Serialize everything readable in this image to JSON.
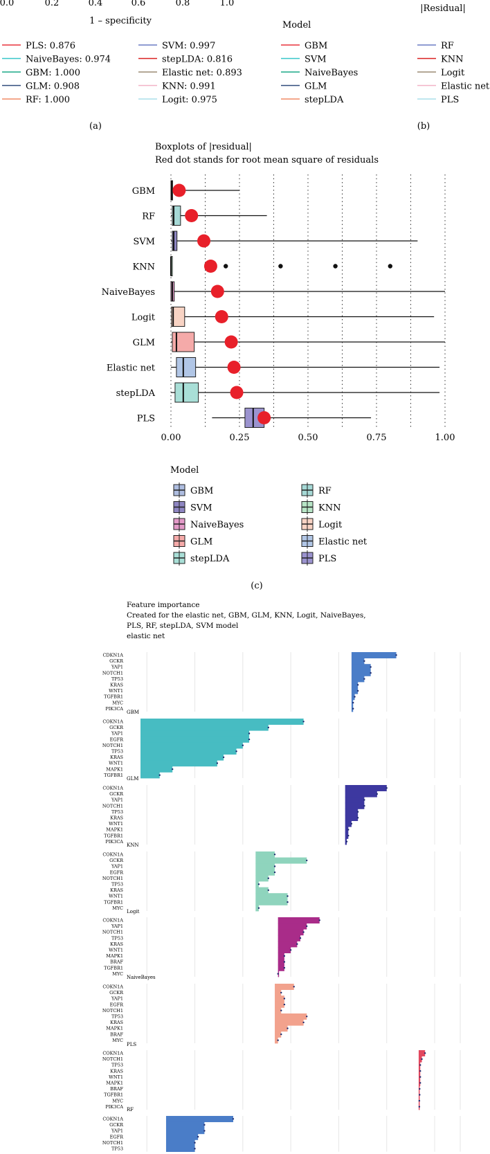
{
  "panel_a": {
    "axis_ticks": [
      "0.0",
      "0.2",
      "0.4",
      "0.6",
      "0.8",
      "1.0"
    ],
    "xlabel": "1 – specificity",
    "caption": "(a)",
    "legend": [
      {
        "label": "PLS: 0.876",
        "color": "#e8323c"
      },
      {
        "label": "SVM: 0.997",
        "color": "#6a7bc4"
      },
      {
        "label": "NaiveBayes: 0.974",
        "color": "#37c6c9"
      },
      {
        "label": "stepLDA: 0.816",
        "color": "#d92020"
      },
      {
        "label": "GBM: 1.000",
        "color": "#1aa987"
      },
      {
        "label": "Elastic net: 0.893",
        "color": "#9b8a74"
      },
      {
        "label": "GLM: 0.908",
        "color": "#2f4a7a"
      },
      {
        "label": "KNN: 0.991",
        "color": "#f2b2c6"
      },
      {
        "label": "RF: 1.000",
        "color": "#f08a67"
      },
      {
        "label": "Logit: 0.975",
        "color": "#a9dfea"
      }
    ]
  },
  "panel_b": {
    "residual_label": "|Residual|",
    "legend_title": "Model",
    "caption": "(b)",
    "legend": [
      {
        "label": "GBM",
        "color": "#e8323c"
      },
      {
        "label": "RF",
        "color": "#6a7bc4"
      },
      {
        "label": "SVM",
        "color": "#37c6c9"
      },
      {
        "label": "KNN",
        "color": "#d92020"
      },
      {
        "label": "NaiveBayes",
        "color": "#1aa987"
      },
      {
        "label": "Logit",
        "color": "#9b8a74"
      },
      {
        "label": "GLM",
        "color": "#2f4a7a"
      },
      {
        "label": "Elastic net",
        "color": "#f2b2c6"
      },
      {
        "label": "stepLDA",
        "color": "#f08a67"
      },
      {
        "label": "PLS",
        "color": "#a9dfea"
      }
    ]
  },
  "chart_data": [
    {
      "type": "boxplot",
      "title": "Boxplots of |residual|",
      "subtitle": "Red dot stands for root mean square of residuals",
      "xlim": [
        0,
        1
      ],
      "xticks": [
        0,
        0.25,
        0.5,
        0.75,
        1.0
      ],
      "xtick_labels": [
        "0.00",
        "0.25",
        "0.50",
        "0.75",
        "1.00"
      ],
      "legend_title": "Model",
      "caption": "(c)",
      "models": [
        {
          "name": "GBM",
          "q1": 0.0,
          "median": 0.003,
          "q3": 0.006,
          "whisker_low": 0.0,
          "whisker_high": 0.25,
          "rms": 0.03,
          "outliers": [],
          "color": "#aebde0"
        },
        {
          "name": "RF",
          "q1": 0.005,
          "median": 0.01,
          "q3": 0.035,
          "whisker_low": 0.0,
          "whisker_high": 0.35,
          "rms": 0.075,
          "outliers": [],
          "color": "#a6d9d6"
        },
        {
          "name": "SVM",
          "q1": 0.005,
          "median": 0.01,
          "q3": 0.022,
          "whisker_low": 0.0,
          "whisker_high": 0.9,
          "rms": 0.12,
          "outliers": [],
          "color": "#8e86c2"
        },
        {
          "name": "KNN",
          "q1": 0.0,
          "median": 0.0,
          "q3": 0.002,
          "whisker_low": 0.0,
          "whisker_high": 0.002,
          "rms": 0.145,
          "outliers": [
            0.2,
            0.4,
            0.6,
            0.8
          ],
          "color": "#b7e5c6"
        },
        {
          "name": "NaiveBayes",
          "q1": 0.0,
          "median": 0.005,
          "q3": 0.012,
          "whisker_low": 0.0,
          "whisker_high": 1.0,
          "rms": 0.17,
          "outliers": [],
          "color": "#e39ac8"
        },
        {
          "name": "Logit",
          "q1": 0.002,
          "median": 0.008,
          "q3": 0.05,
          "whisker_low": 0.0,
          "whisker_high": 0.96,
          "rms": 0.185,
          "outliers": [],
          "color": "#f8d3c4"
        },
        {
          "name": "GLM",
          "q1": 0.005,
          "median": 0.02,
          "q3": 0.085,
          "whisker_low": 0.0,
          "whisker_high": 1.0,
          "rms": 0.22,
          "outliers": [],
          "color": "#f5aaa9"
        },
        {
          "name": "Elastic net",
          "q1": 0.02,
          "median": 0.045,
          "q3": 0.09,
          "whisker_low": 0.0,
          "whisker_high": 0.98,
          "rms": 0.23,
          "outliers": [],
          "color": "#b1c6e6"
        },
        {
          "name": "stepLDA",
          "q1": 0.015,
          "median": 0.045,
          "q3": 0.1,
          "whisker_low": 0.0,
          "whisker_high": 0.98,
          "rms": 0.24,
          "outliers": [],
          "color": "#a9dfd7"
        },
        {
          "name": "PLS",
          "q1": 0.27,
          "median": 0.3,
          "q3": 0.34,
          "whisker_low": 0.15,
          "whisker_high": 0.73,
          "rms": 0.34,
          "outliers": [],
          "color": "#9b93cf"
        }
      ]
    },
    {
      "type": "bar",
      "orientation": "horizontal",
      "title": "Feature importance",
      "subtitle": "Created for the elastic net, GBM, GLM, KNN, Logit, NaiveBayes, PLS, RF, stepLDA, SVM model",
      "first_panel_label": "elastic net",
      "xlim": [
        0,
        1
      ],
      "panels": [
        {
          "label": "",
          "color": "#4a7dc8",
          "baseline": 0.66,
          "features": [
            "CDKN1A",
            "GCKR",
            "YAP1",
            "NOTCH1",
            "TP53",
            "KRAS",
            "WNT1",
            "TGFBR1",
            "MYC",
            "PIK3CA"
          ],
          "values": [
            0.8,
            0.7,
            0.72,
            0.72,
            0.7,
            0.68,
            0.68,
            0.67,
            0.665,
            0.665
          ]
        },
        {
          "label": "GBM",
          "color": "#47bcc2",
          "baseline": 0.0,
          "features": [
            "COKN1A",
            "GCKR",
            "YAP1",
            "EGFR",
            "NOTCH1",
            "TP53",
            "KRAS",
            "WNT1",
            "MAPK1",
            "TGFBR1"
          ],
          "values": [
            0.51,
            0.4,
            0.34,
            0.34,
            0.32,
            0.3,
            0.26,
            0.24,
            0.1,
            0.06
          ]
        },
        {
          "label": "GLM",
          "color": "#3d38a0",
          "baseline": 0.64,
          "features": [
            "COKN1A",
            "GCKR",
            "YAP1",
            "NOTCH1",
            "TP53",
            "KRAS",
            "WNT1",
            "MAPK1",
            "TGFBR1",
            "PIK3CA"
          ],
          "values": [
            0.77,
            0.74,
            0.7,
            0.7,
            0.68,
            0.68,
            0.66,
            0.65,
            0.65,
            0.645
          ]
        },
        {
          "label": "KNN",
          "color": "#8fd4bd",
          "baseline": 0.36,
          "features": [
            "COKN1A",
            "GCKR",
            "YAP1",
            "EGFR",
            "NOTCH1",
            "TP53",
            "KRAS",
            "WNT1",
            "TGFBR1",
            "MYC"
          ],
          "values": [
            0.42,
            0.52,
            0.42,
            0.42,
            0.4,
            0.37,
            0.4,
            0.46,
            0.46,
            0.37
          ]
        },
        {
          "label": "Logit",
          "color": "#a92c89",
          "baseline": 0.43,
          "features": [
            "COKN1A",
            "YAP1",
            "NOTCH1",
            "TP53",
            "KRAS",
            "WNT1",
            "MAPK1",
            "BRAF",
            "TGFBR1",
            "MYC"
          ],
          "values": [
            0.56,
            0.52,
            0.51,
            0.5,
            0.49,
            0.47,
            0.45,
            0.45,
            0.45,
            0.43
          ]
        },
        {
          "label": "NaiveBayes",
          "color": "#f2a28d",
          "baseline": 0.42,
          "features": [
            "COKN1A",
            "GCKR",
            "YAP1",
            "EGFR",
            "NOTCH1",
            "TP53",
            "KRAS",
            "MAPK1",
            "BRAF",
            "MYC"
          ],
          "values": [
            0.48,
            0.44,
            0.45,
            0.45,
            0.44,
            0.52,
            0.51,
            0.46,
            0.44,
            0.43
          ]
        },
        {
          "label": "PLS",
          "color": "#e2485f",
          "baseline": 0.87,
          "features": [
            "COKN1A",
            "NOTCH1",
            "TP53",
            "KRAS",
            "WNT1",
            "MAPK1",
            "BRAF",
            "TGFBR1",
            "MYC",
            "PIK3CA"
          ],
          "values": [
            0.89,
            0.88,
            0.875,
            0.875,
            0.875,
            0.875,
            0.873,
            0.873,
            0.872,
            0.872
          ]
        },
        {
          "label": "RF",
          "color": "#4a7dc8",
          "baseline": 0.08,
          "features": [
            "COKN1A",
            "GCKR",
            "YAP1",
            "EGFR",
            "NOTCH1",
            "TP53"
          ],
          "values": [
            0.29,
            0.2,
            0.2,
            0.18,
            0.17,
            0.17
          ]
        }
      ]
    }
  ]
}
